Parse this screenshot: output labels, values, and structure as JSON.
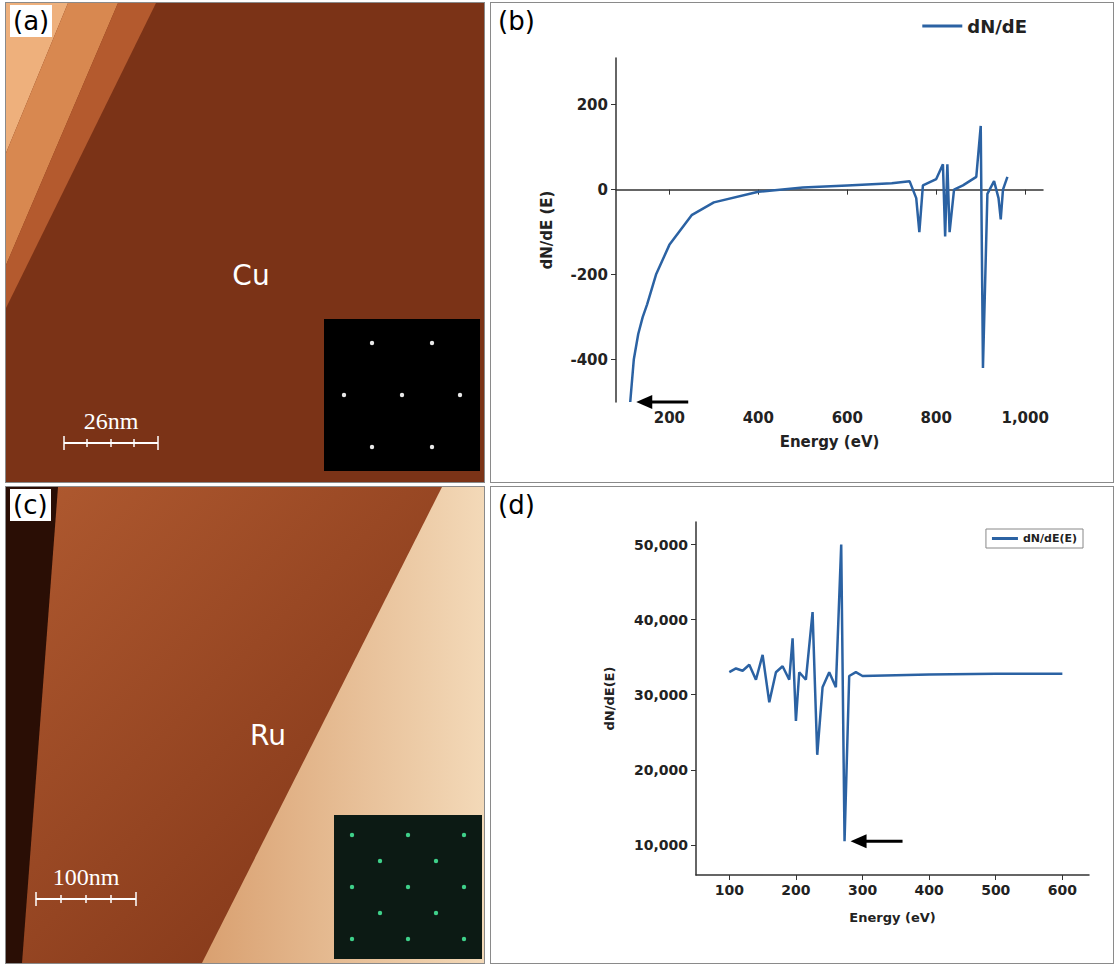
{
  "images": [
    {
      "panel": "(a)",
      "label": "Cu",
      "scale_bar": "26nm"
    },
    {
      "panel": "(c)",
      "label": "Ru",
      "scale_bar": "100nm"
    }
  ],
  "chart_data": [
    {
      "panel": "(b)",
      "type": "line",
      "x_label": "Energy (eV)",
      "y_label": "dN/dE (E)",
      "xlim": [
        80,
        1040
      ],
      "xticks": [
        200,
        400,
        600,
        800,
        1000
      ],
      "ylim": [
        -500,
        310
      ],
      "yticks": [
        -400,
        -200,
        0,
        200
      ],
      "grid": false,
      "legend": "upper right",
      "x": [
        112,
        120,
        130,
        140,
        150,
        170,
        200,
        250,
        300,
        400,
        500,
        600,
        700,
        740,
        755,
        762,
        770,
        800,
        815,
        820,
        825,
        830,
        840,
        860,
        890,
        900,
        905,
        915,
        930,
        940,
        945,
        950,
        960
      ],
      "series": [
        {
          "name": "dN/dE",
          "color": "#2b62a3",
          "values": [
            -500,
            -400,
            -340,
            -300,
            -270,
            -200,
            -130,
            -60,
            -30,
            -5,
            5,
            10,
            15,
            20,
            -20,
            -100,
            10,
            25,
            60,
            -110,
            60,
            -100,
            0,
            10,
            30,
            150,
            -420,
            -10,
            20,
            -20,
            -70,
            0,
            30
          ]
        }
      ]
    },
    {
      "panel": "(d)",
      "type": "line",
      "x_label": "Energy (eV)",
      "y_label": "dN/dE(E)",
      "xlim": [
        50,
        640
      ],
      "xticks": [
        100,
        200,
        300,
        400,
        500,
        600
      ],
      "ylim": [
        6000,
        53000
      ],
      "yticks": [
        10000,
        20000,
        30000,
        40000,
        50000
      ],
      "grid": false,
      "legend": "upper right",
      "x": [
        100,
        110,
        120,
        130,
        140,
        150,
        160,
        170,
        180,
        190,
        195,
        200,
        205,
        215,
        225,
        232,
        240,
        250,
        260,
        268,
        273,
        280,
        290,
        300,
        400,
        500,
        600
      ],
      "series": [
        {
          "name": "dN/dE(E)",
          "color": "#2b62a3",
          "values": [
            33000,
            33500,
            33200,
            34000,
            32000,
            35300,
            29000,
            33000,
            33800,
            32000,
            37500,
            26500,
            33000,
            32000,
            41000,
            22000,
            31000,
            33000,
            31000,
            50000,
            10500,
            32500,
            33000,
            32500,
            32700,
            32800,
            32800
          ]
        }
      ]
    }
  ]
}
